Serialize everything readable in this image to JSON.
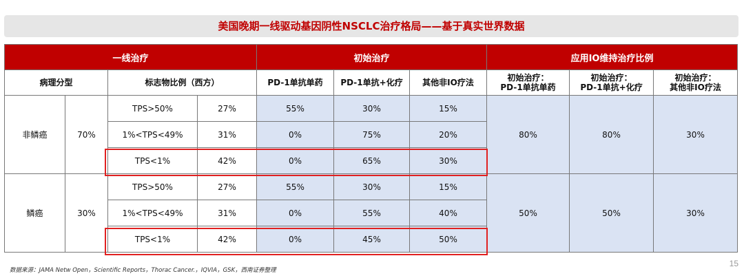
{
  "title": "美国晚期一线驱动基因阴性NSCLC治疗格局——基于真实世界数据",
  "header": {
    "group_first_line": "一线治疗",
    "group_initial": "初始治疗",
    "group_io_maint": "应用IO维持治疗比例"
  },
  "subheader": {
    "pathology": "病理分型",
    "marker": "标志物比例（西方）",
    "pd1_mono": "PD-1单抗单药",
    "pd1_chemo": "PD-1单抗+化疗",
    "other_non_io": "其他非IO疗法",
    "init_pd1_mono": "初始治疗：\nPD-1单抗单药",
    "init_pd1_chemo": "初始治疗：\nPD-1单抗+化疗",
    "init_other": "初始治疗：\n其他非IO疗法"
  },
  "groups": [
    {
      "type": "非鳞癌",
      "pct": "70%",
      "maint": [
        "80%",
        "80%",
        "30%"
      ],
      "rows": [
        {
          "tps": "TPS>50%",
          "share": "27%",
          "mono": "55%",
          "chemo": "30%",
          "other": "15%"
        },
        {
          "tps": "1%<TPS<49%",
          "share": "31%",
          "mono": "0%",
          "chemo": "75%",
          "other": "20%"
        },
        {
          "tps": "TPS<1%",
          "share": "42%",
          "mono": "0%",
          "chemo": "65%",
          "other": "30%"
        }
      ]
    },
    {
      "type": "鳞癌",
      "pct": "30%",
      "maint": [
        "50%",
        "50%",
        "30%"
      ],
      "rows": [
        {
          "tps": "TPS>50%",
          "share": "27%",
          "mono": "55%",
          "chemo": "30%",
          "other": "15%"
        },
        {
          "tps": "1%<TPS<49%",
          "share": "31%",
          "mono": "0%",
          "chemo": "55%",
          "other": "40%"
        },
        {
          "tps": "TPS<1%",
          "share": "42%",
          "mono": "0%",
          "chemo": "45%",
          "other": "50%"
        }
      ]
    }
  ],
  "source": "数据来源：JAMA Netw Open，Scientific Reports，Thorac Cancer.，IQVIA，GSK，西南证券整理",
  "page_number": "15",
  "colors": {
    "accent": "#c00000",
    "highlight_border": "#e02020",
    "cell_blue": "#dae3f3"
  }
}
